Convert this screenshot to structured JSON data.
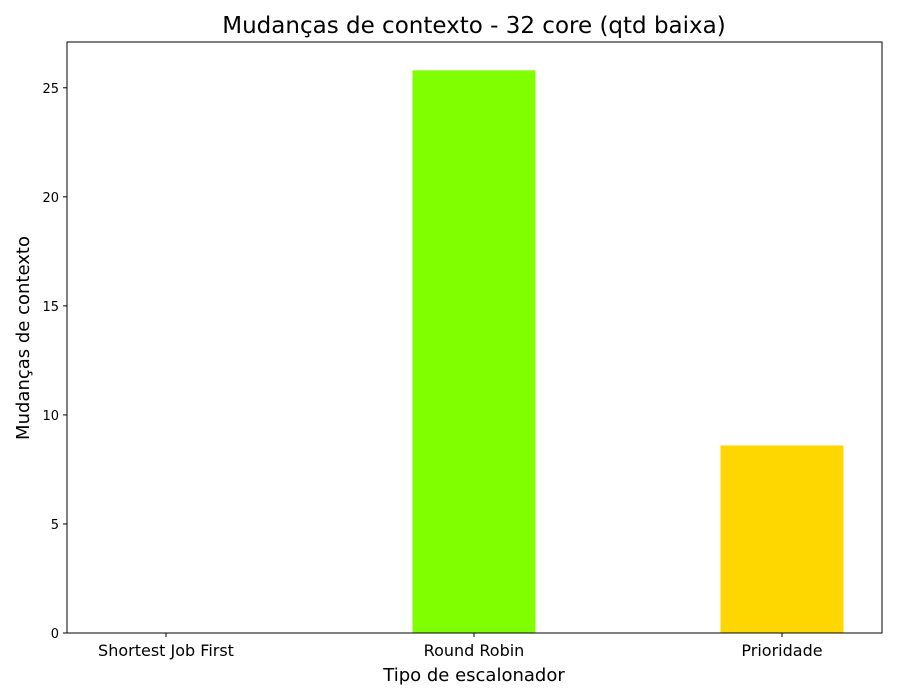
{
  "chart_data": {
    "type": "bar",
    "title": "Mudanças de contexto - 32 core (qtd baixa)",
    "xlabel": "Tipo de escalonador",
    "ylabel": "Mudanças de contexto",
    "categories": [
      "Shortest Job First",
      "Round Robin",
      "Prioridade"
    ],
    "values": [
      0,
      25.8,
      8.6
    ],
    "colors": [
      "#1f77b4",
      "#7fff00",
      "#ffd700"
    ],
    "ylim": [
      0,
      27.1
    ],
    "yticks": [
      0,
      5,
      10,
      15,
      20,
      25
    ],
    "grid": false,
    "legend": "none"
  }
}
